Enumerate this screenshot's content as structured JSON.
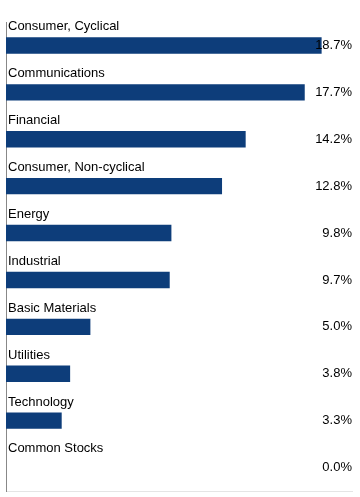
{
  "chart_data": {
    "type": "bar",
    "orientation": "horizontal",
    "categories": [
      "Consumer, Cyclical",
      "Communications",
      "Financial",
      "Consumer, Non-cyclical",
      "Energy",
      "Industrial",
      "Basic Materials",
      "Utilities",
      "Technology",
      "Common Stocks"
    ],
    "values": [
      18.7,
      17.7,
      14.2,
      12.8,
      9.8,
      9.7,
      5.0,
      3.8,
      3.3,
      0.0
    ],
    "value_labels": [
      "18.7%",
      "17.7%",
      "14.2%",
      "12.8%",
      "9.8%",
      "9.7%",
      "5.0%",
      "3.8%",
      "3.3%",
      "0.0%"
    ],
    "color": "#0d3d7a",
    "xlim": [
      0,
      20.5
    ],
    "data_labels": true,
    "tick_labels": false,
    "grid": false
  }
}
